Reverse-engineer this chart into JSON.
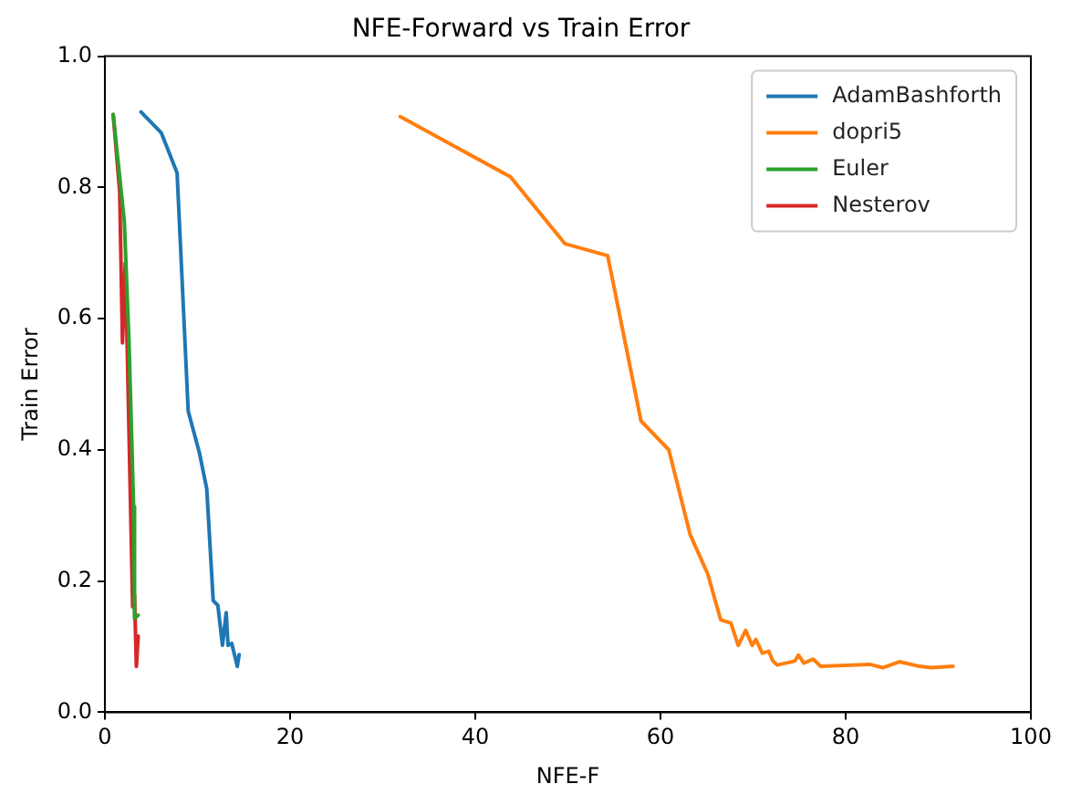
{
  "chart_data": {
    "type": "line",
    "title": "NFE-Forward vs Train Error",
    "xlabel": "NFE-F",
    "ylabel": "Train Error",
    "xlim": [
      0,
      100
    ],
    "xticks": [
      0,
      20,
      40,
      60,
      80,
      100
    ],
    "ylim": [
      0,
      1.0
    ],
    "yticks": [
      {
        "value": 0,
        "label": "0.0"
      },
      0.2,
      0.4,
      0.6,
      0.8,
      {
        "value": 1,
        "label": "1.0"
      }
    ],
    "grid": false,
    "legend": "top right",
    "marker": "none",
    "line_style": "solid",
    "series": [
      {
        "name": "AdamBashforth",
        "color": "#1f77b4",
        "x": [
          3.9,
          6.1,
          7.8,
          9.0,
          10.2,
          11.0,
          11.7,
          12.2,
          12.7,
          13.1,
          13.3,
          13.7,
          14.3,
          14.5
        ],
        "values": [
          0.915,
          0.883,
          0.822,
          0.459,
          0.396,
          0.341,
          0.17,
          0.163,
          0.102,
          0.152,
          0.102,
          0.105,
          0.07,
          0.088
        ]
      },
      {
        "name": "dopri5",
        "color": "#ff7f0e",
        "x": [
          31.9,
          43.8,
          49.7,
          54.3,
          57.9,
          60.9,
          63.2,
          65.1,
          66.5,
          67.6,
          68.4,
          69.2,
          69.9,
          70.3,
          71.0,
          71.7,
          72.1,
          72.6,
          74.5,
          74.9,
          75.5,
          76.5,
          77.3,
          82.6,
          84.0,
          85.8,
          88.0,
          89.3,
          91.6
        ],
        "values": [
          0.908,
          0.816,
          0.714,
          0.696,
          0.444,
          0.4,
          0.271,
          0.211,
          0.141,
          0.136,
          0.102,
          0.125,
          0.102,
          0.111,
          0.09,
          0.093,
          0.079,
          0.072,
          0.078,
          0.087,
          0.075,
          0.081,
          0.07,
          0.073,
          0.068,
          0.077,
          0.07,
          0.068,
          0.07
        ]
      },
      {
        "name": "Euler",
        "color": "#2ca02c",
        "x": [
          0.9,
          2.1,
          2.6,
          3.1,
          3.2,
          3.6
        ],
        "values": [
          0.911,
          0.748,
          0.567,
          0.314,
          0.143,
          0.148
        ]
      },
      {
        "name": "Nesterov",
        "color": "#d62728",
        "x": [
          0.9,
          1.6,
          1.9,
          2.2,
          2.4,
          3.0,
          3.2,
          3.4,
          3.6
        ],
        "values": [
          0.911,
          0.793,
          0.563,
          0.685,
          0.563,
          0.161,
          0.179,
          0.07,
          0.116
        ]
      }
    ]
  }
}
